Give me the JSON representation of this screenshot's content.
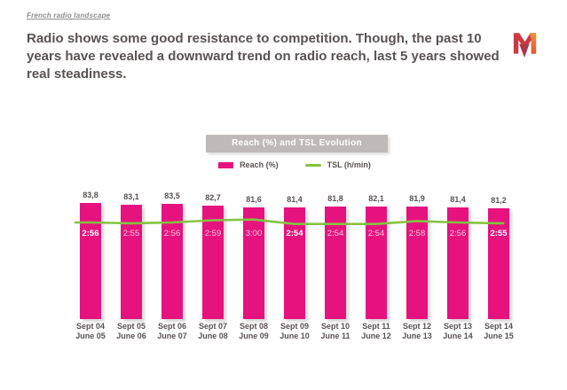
{
  "slide": {
    "tagline": "French radio landscape",
    "headline": "Radio shows some good resistance to competition. Though, the past 10 years have revealed a downward trend on radio reach, last 5 years showed real steadiness."
  },
  "legend": {
    "reach_label": "Reach (%)",
    "tsl_label": "TSL (h/min)"
  },
  "colors": {
    "bar_pink": "#e6137f",
    "line_green": "#83c341",
    "title_bar_gray": "#bfbab7",
    "text_dark_gray": "#5a5252",
    "logo_red": "#cb3a40",
    "logo_orange_top": "#f09238",
    "logo_orange_bottom": "#e2592b",
    "logo_arrow_red": "#ab3a49"
  },
  "chart_data": {
    "type": "bar+line",
    "title": "Reach (%) and TSL Evolution",
    "legend_position": "top",
    "grid": false,
    "categories": [
      {
        "top": "Sept 04",
        "bottom": "June 05"
      },
      {
        "top": "Sept 05",
        "bottom": "June 06"
      },
      {
        "top": "Sept 06",
        "bottom": "June 07"
      },
      {
        "top": "Sept 07",
        "bottom": "June 08"
      },
      {
        "top": "Sept 08",
        "bottom": "June 09"
      },
      {
        "top": "Sept 09",
        "bottom": "June 10"
      },
      {
        "top": "Sept 10",
        "bottom": "June 11"
      },
      {
        "top": "Sept 11",
        "bottom": "June 12"
      },
      {
        "top": "Sept 12",
        "bottom": "June 13"
      },
      {
        "top": "Sept 13",
        "bottom": "June 14"
      },
      {
        "top": "Sept 14",
        "bottom": "June 15"
      }
    ],
    "series": [
      {
        "name": "Reach (%)",
        "type": "bar",
        "unit": "%",
        "values": [
          83.8,
          83.1,
          83.5,
          82.7,
          81.6,
          81.4,
          81.8,
          82.1,
          81.9,
          81.4,
          81.2
        ],
        "labels": [
          "83,8",
          "83,1",
          "83,5",
          "82,7",
          "81,6",
          "81,4",
          "81,8",
          "82,1",
          "81,9",
          "81,4",
          "81,2"
        ]
      },
      {
        "name": "TSL (h/min)",
        "type": "line",
        "values": [
          "2:56",
          "2:55",
          "2:56",
          "2:59",
          "3:00",
          "2:54",
          "2:54",
          "2:54",
          "2:58",
          "2:56",
          "2:55"
        ],
        "highlighted_indexes": [
          0,
          5,
          10
        ]
      }
    ]
  }
}
